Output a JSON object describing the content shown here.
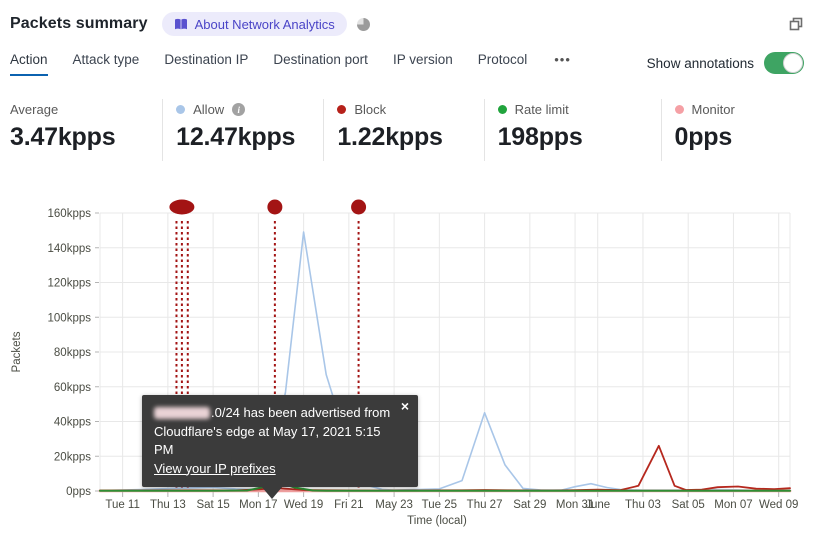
{
  "header": {
    "title": "Packets summary",
    "badge_label": "About Network Analytics",
    "badge_icon": "book-icon",
    "status_icon": "pie-icon",
    "window_icon": "copy-icon"
  },
  "tabs": {
    "items": [
      {
        "label": "Action",
        "active": true
      },
      {
        "label": "Attack type",
        "active": false
      },
      {
        "label": "Destination IP",
        "active": false
      },
      {
        "label": "Destination port",
        "active": false
      },
      {
        "label": "IP version",
        "active": false
      },
      {
        "label": "Protocol",
        "active": false
      }
    ],
    "more_label": "•••",
    "show_annotations_label": "Show annotations",
    "annotations_on": true
  },
  "colors": {
    "accent_blue": "#0b62b0",
    "toggle_green": "#3ea463",
    "badge_bg": "#ecebfb",
    "badge_text": "#4a44c7",
    "annotation_red": "#a31414",
    "allow": "#a9c6e8",
    "block": "#b6211a",
    "rate_limit": "#21a43d",
    "monitor": "#f5a0a5"
  },
  "stats": [
    {
      "label": "Average",
      "value": "3.47kpps",
      "dot": null,
      "info": false
    },
    {
      "label": "Allow",
      "value": "12.47kpps",
      "dot": "#a9c6e8",
      "info": true
    },
    {
      "label": "Block",
      "value": "1.22kpps",
      "dot": "#b6211a",
      "info": false
    },
    {
      "label": "Rate limit",
      "value": "198pps",
      "dot": "#21a43d",
      "info": false
    },
    {
      "label": "Monitor",
      "value": "0pps",
      "dot": "#f5a0a5",
      "info": false
    }
  ],
  "tooltip": {
    "line1_after_redaction": ".0/24 has been advertised from",
    "line2": "Cloudflare's edge at May 17, 2021 5:15 PM",
    "link": "View your IP prefixes",
    "close": "×"
  },
  "chart_data": {
    "type": "line",
    "title": "",
    "xlabel": "Time (local)",
    "ylabel": "Packets",
    "ylim": [
      0,
      160
    ],
    "y_unit": "kpps",
    "x_unit": "days since Mon May 10 2021",
    "xmax": 30.5,
    "grid": true,
    "yticks": [
      {
        "v": 0,
        "label": "0pps"
      },
      {
        "v": 20,
        "label": "20kpps"
      },
      {
        "v": 40,
        "label": "40kpps"
      },
      {
        "v": 60,
        "label": "60kpps"
      },
      {
        "v": 80,
        "label": "80kpps"
      },
      {
        "v": 100,
        "label": "100kpps"
      },
      {
        "v": 120,
        "label": "120kpps"
      },
      {
        "v": 140,
        "label": "140kpps"
      },
      {
        "v": 160,
        "label": "160kpps"
      }
    ],
    "xticks": [
      {
        "d": 1,
        "label": "Tue 11"
      },
      {
        "d": 3,
        "label": "Thu 13"
      },
      {
        "d": 5,
        "label": "Sat 15"
      },
      {
        "d": 7,
        "label": "Mon 17"
      },
      {
        "d": 9,
        "label": "Wed 19"
      },
      {
        "d": 11,
        "label": "Fri 21"
      },
      {
        "d": 13,
        "label": "May 23"
      },
      {
        "d": 15,
        "label": "Tue 25"
      },
      {
        "d": 17,
        "label": "Thu 27"
      },
      {
        "d": 19,
        "label": "Sat 29"
      },
      {
        "d": 21,
        "label": "Mon 31"
      },
      {
        "d": 22,
        "label": "June"
      },
      {
        "d": 24,
        "label": "Thu 03"
      },
      {
        "d": 26,
        "label": "Sat 05"
      },
      {
        "d": 28,
        "label": "Mon 07"
      },
      {
        "d": 30,
        "label": "Wed 09"
      }
    ],
    "series": [
      {
        "name": "Allow",
        "color": "#a9c6e8",
        "width": 1.6,
        "points": [
          [
            0,
            0.3
          ],
          [
            1,
            0.5
          ],
          [
            2,
            0.9
          ],
          [
            3,
            1.4
          ],
          [
            4,
            1.8
          ],
          [
            5,
            2.0
          ],
          [
            6,
            1.2
          ],
          [
            6.8,
            0.8
          ],
          [
            7.4,
            2
          ],
          [
            8.2,
            57
          ],
          [
            9,
            149
          ],
          [
            10,
            67
          ],
          [
            11,
            25
          ],
          [
            11.9,
            3
          ],
          [
            12.5,
            0.8
          ],
          [
            13,
            0.6
          ],
          [
            14,
            0.8
          ],
          [
            15,
            1.2
          ],
          [
            16,
            6
          ],
          [
            17,
            45
          ],
          [
            17.9,
            15
          ],
          [
            18.7,
            1.5
          ],
          [
            19.5,
            0.6
          ],
          [
            20.4,
            0.5
          ],
          [
            21,
            2.5
          ],
          [
            21.7,
            4.2
          ],
          [
            22.4,
            2
          ],
          [
            23,
            0.8
          ],
          [
            24,
            0.6
          ],
          [
            25,
            0.5
          ],
          [
            26,
            0.6
          ],
          [
            27,
            0.9
          ],
          [
            28,
            0.7
          ],
          [
            29,
            0.4
          ],
          [
            30.5,
            0.5
          ]
        ]
      },
      {
        "name": "Monitor",
        "color": "#f2a0a0",
        "width": 2.8,
        "points": [
          [
            0,
            0.05
          ],
          [
            30.5,
            0.05
          ]
        ]
      },
      {
        "name": "Block",
        "color": "#b6281e",
        "width": 1.8,
        "points": [
          [
            0,
            0.3
          ],
          [
            2,
            0.35
          ],
          [
            4,
            0.4
          ],
          [
            6,
            0.35
          ],
          [
            7,
            0.9
          ],
          [
            7.8,
            1.7
          ],
          [
            9,
            0.6
          ],
          [
            10,
            0.4
          ],
          [
            12,
            0.3
          ],
          [
            14,
            0.35
          ],
          [
            16,
            0.4
          ],
          [
            17,
            0.6
          ],
          [
            18,
            0.4
          ],
          [
            20,
            0.3
          ],
          [
            21,
            0.5
          ],
          [
            22,
            0.8
          ],
          [
            23,
            0.5
          ],
          [
            23.8,
            3
          ],
          [
            24.7,
            26
          ],
          [
            25.4,
            3
          ],
          [
            25.9,
            0.6
          ],
          [
            26.6,
            0.8
          ],
          [
            27.3,
            2.2
          ],
          [
            28.2,
            2.6
          ],
          [
            29,
            1.3
          ],
          [
            29.8,
            1.1
          ],
          [
            30.5,
            1.6
          ]
        ]
      },
      {
        "name": "Rate limit",
        "color": "#2e8f35",
        "width": 2,
        "points": [
          [
            0,
            0.1
          ],
          [
            5,
            0.1
          ],
          [
            6.5,
            0.3
          ],
          [
            7.2,
            2.2
          ],
          [
            7.8,
            5.5
          ],
          [
            8.6,
            2
          ],
          [
            9.4,
            0.3
          ],
          [
            10,
            0.15
          ],
          [
            30.5,
            0.1
          ]
        ]
      }
    ],
    "legend": [
      {
        "name": "Allow",
        "color": "#a9c6e8"
      },
      {
        "name": "Block",
        "color": "#b6211a"
      },
      {
        "name": "Rate limit",
        "color": "#21a43d"
      },
      {
        "name": "Monitor",
        "color": "#f5a0a5"
      }
    ],
    "annotations": {
      "color": "#a31414",
      "lines_d": [
        3.38,
        3.62,
        3.88,
        7.73,
        11.43
      ],
      "dots": [
        {
          "d": 3.62,
          "pill": true
        },
        {
          "d": 7.73,
          "pill": false
        },
        {
          "d": 11.43,
          "pill": false
        }
      ]
    }
  }
}
